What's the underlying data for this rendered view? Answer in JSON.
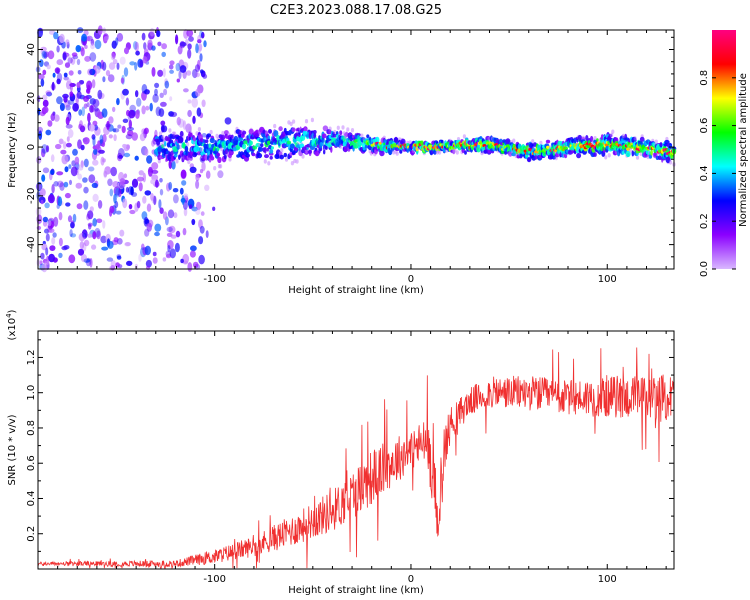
{
  "title": "C2E3.2023.088.17.08.G25",
  "chart_data": [
    {
      "type": "heatmap",
      "xlabel": "Height of straight line (km)",
      "ylabel": "Frequency (Hz)",
      "xlim": [
        -190,
        134
      ],
      "ylim": [
        -50,
        48
      ],
      "x_ticks": [
        -100,
        0,
        100
      ],
      "x_tick_labels": [
        "-100",
        "0",
        "100"
      ],
      "y_ticks": [
        -40,
        -20,
        0,
        20,
        40
      ],
      "y_tick_labels": [
        "-40",
        "-20",
        "0",
        "20",
        "40"
      ],
      "description_series": {
        "noise_region_x": [
          -190,
          -105
        ],
        "signal_start_x": -130,
        "signal_centerline": [
          [
            -130,
            0
          ],
          [
            -100,
            0
          ],
          [
            -60,
            2
          ],
          [
            -40,
            3
          ],
          [
            -20,
            1
          ],
          [
            0,
            0
          ],
          [
            40,
            1
          ],
          [
            60,
            -2
          ],
          [
            80,
            0
          ],
          [
            100,
            1
          ],
          [
            134,
            -2
          ]
        ],
        "signal_halfwidth_hz": [
          [
            -130,
            6
          ],
          [
            -60,
            7
          ],
          [
            -30,
            4
          ],
          [
            0,
            2
          ],
          [
            60,
            3
          ],
          [
            100,
            4
          ],
          [
            134,
            4
          ]
        ]
      },
      "colorbar": {
        "label": "Normalized spectral amplitude",
        "range": [
          0,
          1
        ],
        "ticks": [
          0,
          0.2,
          0.4,
          0.6,
          0.8
        ],
        "tick_labels": [
          "0.0",
          "0.2",
          "0.4",
          "0.6",
          "0.8"
        ],
        "colormap": [
          "#d9b8ff",
          "#8b00ff",
          "#0000ff",
          "#00ffff",
          "#00ff00",
          "#ffff00",
          "#ff0000",
          "#ff0080"
        ]
      }
    },
    {
      "type": "line",
      "xlabel": "Height of straight line (km)",
      "ylabel": "SNR (10 * v/v)",
      "y_scale_note": "(x10",
      "y_scale_exp": "4",
      "y_scale_close": ")",
      "xlim": [
        -190,
        134
      ],
      "ylim": [
        0.0,
        1.35
      ],
      "x_ticks": [
        -100,
        0,
        100
      ],
      "x_tick_labels": [
        "-100",
        "0",
        "100"
      ],
      "y_ticks": [
        0.2,
        0.4,
        0.6,
        0.8,
        1.0,
        1.2
      ],
      "y_tick_labels": [
        "0.2",
        "0.4",
        "0.6",
        "0.8",
        "1.0",
        "1.2"
      ],
      "series": [
        {
          "name": "SNR",
          "color": "#f03030",
          "envelope_x": [
            -190,
            -120,
            -100,
            -80,
            -60,
            -40,
            -30,
            -20,
            -10,
            0,
            8,
            12,
            14,
            16,
            20,
            30,
            40,
            60,
            80,
            100,
            120,
            134
          ],
          "envelope_mid": [
            0.03,
            0.03,
            0.07,
            0.13,
            0.22,
            0.33,
            0.42,
            0.52,
            0.6,
            0.68,
            0.72,
            0.5,
            0.18,
            0.62,
            0.82,
            0.95,
            1.0,
            1.0,
            0.97,
            0.98,
            0.97,
            0.97
          ],
          "envelope_spread": [
            0.01,
            0.02,
            0.04,
            0.06,
            0.09,
            0.12,
            0.14,
            0.16,
            0.14,
            0.12,
            0.14,
            0.2,
            0.05,
            0.18,
            0.1,
            0.08,
            0.09,
            0.1,
            0.1,
            0.12,
            0.13,
            0.14
          ]
        }
      ]
    }
  ]
}
